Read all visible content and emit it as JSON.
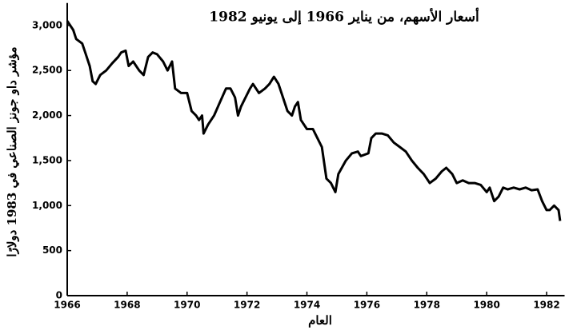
{
  "chart_data": {
    "type": "line",
    "title": "أسعار الأسهم، من يناير 1966 إلى يونيو 1982",
    "x_label": "العام",
    "y_label": "مؤشر داو جونز الصناعي في 1983 دولارًا",
    "xlim": [
      1966,
      1982.6
    ],
    "xticks": [
      1966,
      1968,
      1970,
      1972,
      1974,
      1976,
      1978,
      1980,
      1982
    ],
    "ylim": [
      0,
      3250
    ],
    "yticks": [
      0,
      500,
      {
        "value": 1000,
        "label": "1,000"
      },
      {
        "value": 1500,
        "label": "1,500"
      },
      {
        "value": 2000,
        "label": "2,000"
      },
      {
        "value": 2500,
        "label": "2,500"
      },
      {
        "value": 3000,
        "label": "3,000"
      }
    ],
    "grid": false,
    "series": [
      {
        "name": "Dow Jones",
        "color": "#000000",
        "x": [
          1966.0,
          1966.2,
          1966.3,
          1966.5,
          1966.6,
          1966.75,
          1966.85,
          1966.95,
          1967.1,
          1967.3,
          1967.5,
          1967.7,
          1967.8,
          1967.95,
          1968.05,
          1968.2,
          1968.4,
          1968.55,
          1968.7,
          1968.85,
          1969.0,
          1969.2,
          1969.35,
          1969.5,
          1969.6,
          1969.8,
          1970.0,
          1970.15,
          1970.3,
          1970.4,
          1970.5,
          1970.55,
          1970.7,
          1970.9,
          1971.1,
          1971.3,
          1971.45,
          1971.6,
          1971.7,
          1971.8,
          1971.95,
          1972.1,
          1972.2,
          1972.4,
          1972.6,
          1972.75,
          1972.9,
          1973.05,
          1973.2,
          1973.35,
          1973.5,
          1973.6,
          1973.7,
          1973.8,
          1974.0,
          1974.2,
          1974.35,
          1974.5,
          1974.65,
          1974.8,
          1974.95,
          1975.05,
          1975.3,
          1975.5,
          1975.7,
          1975.8,
          1976.05,
          1976.15,
          1976.3,
          1976.5,
          1976.7,
          1976.9,
          1977.1,
          1977.3,
          1977.5,
          1977.7,
          1977.9,
          1978.1,
          1978.3,
          1978.5,
          1978.65,
          1978.85,
          1979.0,
          1979.2,
          1979.4,
          1979.6,
          1979.8,
          1980.0,
          1980.1,
          1980.25,
          1980.4,
          1980.55,
          1980.7,
          1980.9,
          1981.1,
          1981.3,
          1981.5,
          1981.7,
          1981.85,
          1982.0,
          1982.1,
          1982.25,
          1982.4,
          1982.45
        ],
        "values": [
          3050,
          2950,
          2850,
          2800,
          2700,
          2550,
          2380,
          2350,
          2450,
          2500,
          2580,
          2650,
          2700,
          2720,
          2550,
          2600,
          2500,
          2450,
          2650,
          2700,
          2680,
          2600,
          2500,
          2600,
          2300,
          2250,
          2250,
          2050,
          2000,
          1950,
          2000,
          1800,
          1900,
          2000,
          2150,
          2300,
          2300,
          2200,
          2000,
          2100,
          2200,
          2300,
          2350,
          2250,
          2300,
          2350,
          2430,
          2350,
          2200,
          2050,
          2000,
          2100,
          2150,
          1950,
          1850,
          1850,
          1750,
          1650,
          1300,
          1250,
          1150,
          1350,
          1500,
          1580,
          1600,
          1550,
          1580,
          1750,
          1800,
          1800,
          1780,
          1700,
          1650,
          1600,
          1500,
          1420,
          1350,
          1250,
          1300,
          1380,
          1420,
          1350,
          1250,
          1280,
          1250,
          1250,
          1230,
          1150,
          1200,
          1050,
          1100,
          1200,
          1180,
          1200,
          1180,
          1200,
          1170,
          1180,
          1050,
          950,
          950,
          1000,
          950,
          830
        ]
      }
    ]
  }
}
